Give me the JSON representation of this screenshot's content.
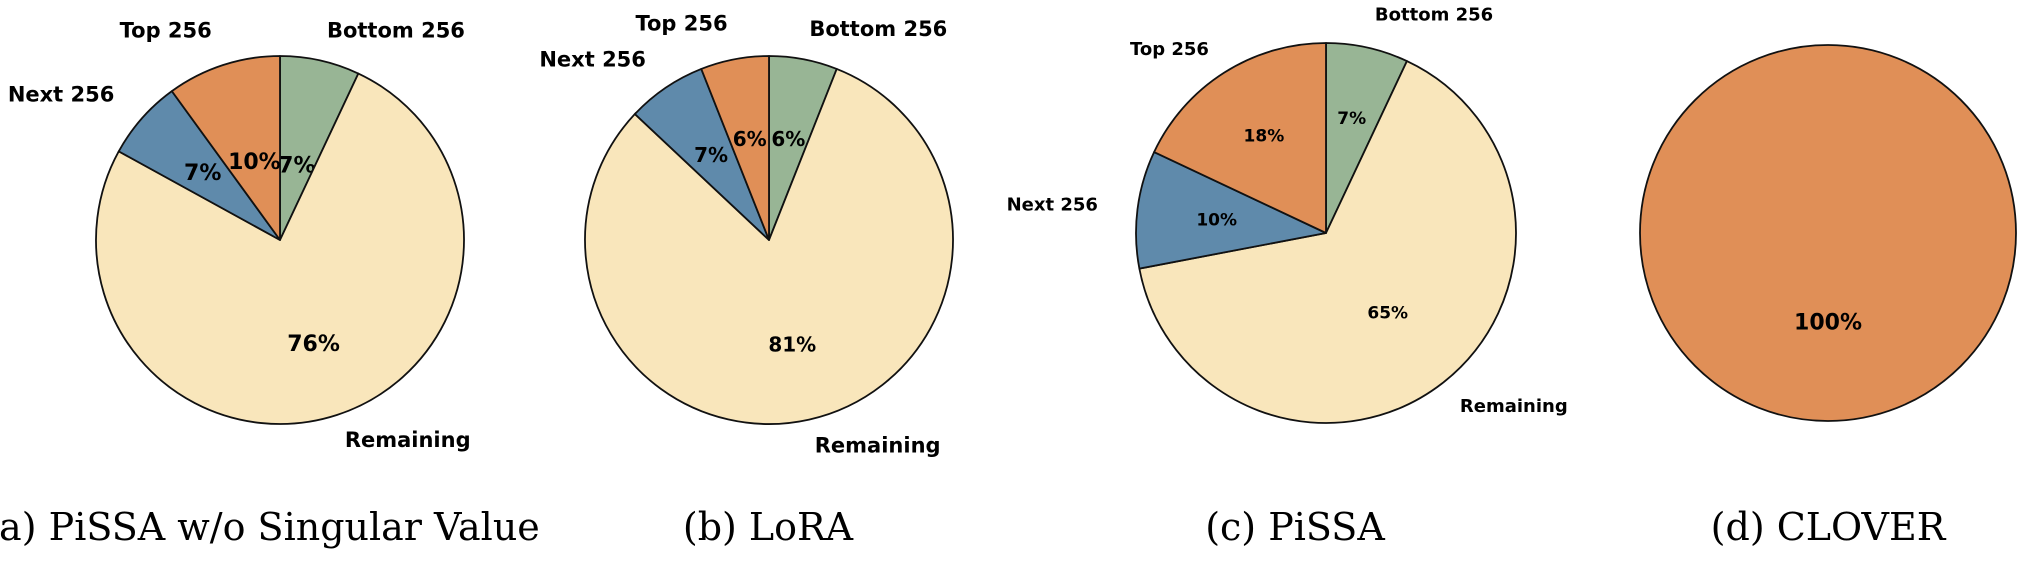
{
  "colors": {
    "top": "#e08f57",
    "next": "#5f8aab",
    "bottom": "#98b595",
    "remaining": "#f9e6bb",
    "stroke": "#111111"
  },
  "chart_data": [
    {
      "type": "pie",
      "caption": "(a) PiSSA w/o Singular Value",
      "slices": [
        {
          "label": "Bottom 256",
          "value": 7,
          "pct": "7%",
          "color": "#98b595"
        },
        {
          "label": "Remaining",
          "value": 76,
          "pct": "76%",
          "color": "#f9e6bb"
        },
        {
          "label": "Next 256",
          "value": 7,
          "pct": "7%",
          "color": "#5f8aab"
        },
        {
          "label": "Top 256",
          "value": 10,
          "pct": "10%",
          "color": "#e08f57"
        }
      ]
    },
    {
      "type": "pie",
      "caption": "(b) LoRA",
      "slices": [
        {
          "label": "Bottom 256",
          "value": 6,
          "pct": "6%",
          "color": "#98b595"
        },
        {
          "label": "Remaining",
          "value": 81,
          "pct": "81%",
          "color": "#f9e6bb"
        },
        {
          "label": "Next 256",
          "value": 7,
          "pct": "7%",
          "color": "#5f8aab"
        },
        {
          "label": "Top 256",
          "value": 6,
          "pct": "6%",
          "color": "#e08f57"
        }
      ]
    },
    {
      "type": "pie",
      "caption": "(c) PiSSA",
      "slices": [
        {
          "label": "Bottom 256",
          "value": 7,
          "pct": "7%",
          "color": "#98b595"
        },
        {
          "label": "Remaining",
          "value": 65,
          "pct": "65%",
          "color": "#f9e6bb"
        },
        {
          "label": "Next 256",
          "value": 10,
          "pct": "10%",
          "color": "#5f8aab"
        },
        {
          "label": "Top 256",
          "value": 18,
          "pct": "18%",
          "color": "#e08f57"
        }
      ]
    },
    {
      "type": "pie",
      "caption": "(d) CLOVER",
      "slices": [
        {
          "label": "",
          "value": 100,
          "pct": "100%",
          "color": "#e08f57"
        }
      ]
    }
  ]
}
